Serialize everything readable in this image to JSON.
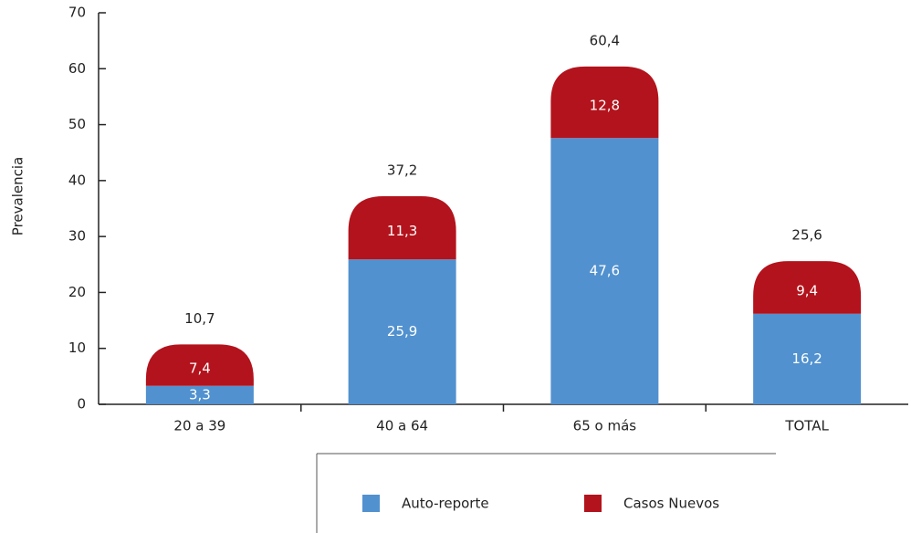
{
  "chart_data": {
    "type": "stacked_bar",
    "y_label": "Prevalencia",
    "categories": [
      "20 a 39",
      "40 a 64",
      "65 o más",
      "TOTAL"
    ],
    "series": [
      {
        "name": "Auto-reporte",
        "color": "#5191cf",
        "values": [
          3.3,
          25.9,
          47.6,
          16.2
        ],
        "value_labels": [
          "3,3",
          "25,9",
          "47,6",
          "16,2"
        ]
      },
      {
        "name": "Casos Nuevos",
        "color": "#b3131c",
        "values": [
          7.4,
          11.3,
          12.8,
          9.4
        ],
        "value_labels": [
          "7,4",
          "11,3",
          "12,8",
          "9,4"
        ]
      }
    ],
    "totals": [
      10.7,
      37.2,
      60.4,
      25.6
    ],
    "total_labels": [
      "10,7",
      "37,2",
      "60,4",
      "25,6"
    ],
    "ylim": [
      0,
      70
    ],
    "yticks": [
      0,
      10,
      20,
      30,
      40,
      50,
      60,
      70
    ],
    "grid": false
  }
}
